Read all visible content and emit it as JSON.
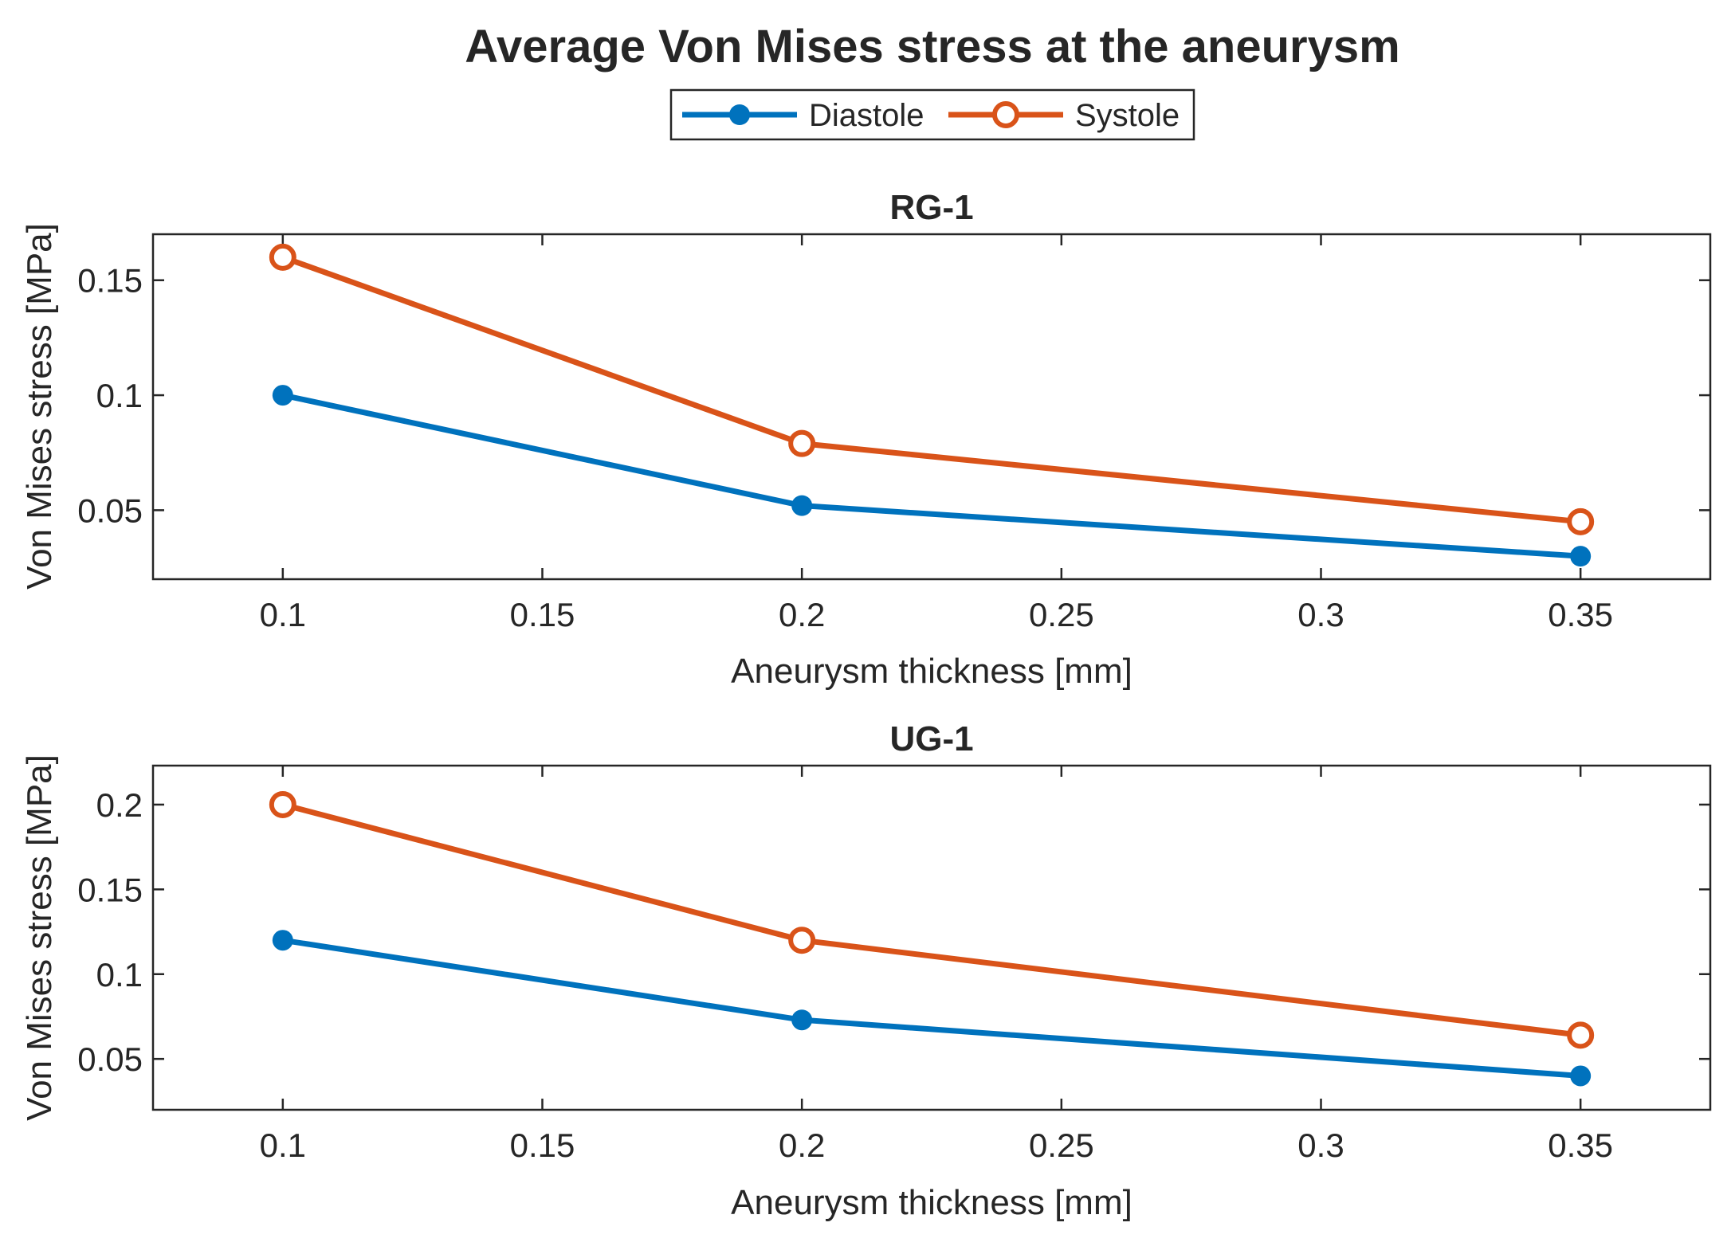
{
  "chart_data": {
    "type": "line",
    "title": "Average Von Mises stress at the aneurysm",
    "legend": {
      "placement": "top-center",
      "entries": [
        {
          "name": "Diastole",
          "color": "#0072BD",
          "marker": "filled-circle"
        },
        {
          "name": "Systole",
          "color": "#D95319",
          "marker": "open-circle"
        }
      ]
    },
    "subplots": [
      {
        "title": "RG-1",
        "xlabel": "Aneurysm thickness [mm]",
        "ylabel": "Von Mises stress [MPa]",
        "xlim": [
          0.075,
          0.375
        ],
        "ylim": [
          0.02,
          0.17
        ],
        "xticks": [
          0.1,
          0.15,
          0.2,
          0.25,
          0.3,
          0.35
        ],
        "xtick_labels": [
          "0.1",
          "0.15",
          "0.2",
          "0.25",
          "0.3",
          "0.35"
        ],
        "yticks": [
          0.05,
          0.1,
          0.15
        ],
        "ytick_labels": [
          "0.05",
          "0.1",
          "0.15"
        ],
        "x": [
          0.1,
          0.2,
          0.35
        ],
        "series": [
          {
            "name": "Diastole",
            "values": [
              0.1,
              0.052,
              0.03
            ]
          },
          {
            "name": "Systole",
            "values": [
              0.16,
              0.079,
              0.045
            ]
          }
        ]
      },
      {
        "title": "UG-1",
        "xlabel": "Aneurysm thickness [mm]",
        "ylabel": "Von Mises stress [MPa]",
        "xlim": [
          0.075,
          0.375
        ],
        "ylim": [
          0.02,
          0.223
        ],
        "xticks": [
          0.1,
          0.15,
          0.2,
          0.25,
          0.3,
          0.35
        ],
        "xtick_labels": [
          "0.1",
          "0.15",
          "0.2",
          "0.25",
          "0.3",
          "0.35"
        ],
        "yticks": [
          0.05,
          0.1,
          0.15,
          0.2
        ],
        "ytick_labels": [
          "0.05",
          "0.1",
          "0.15",
          "0.2"
        ],
        "x": [
          0.1,
          0.2,
          0.35
        ],
        "series": [
          {
            "name": "Diastole",
            "values": [
              0.12,
              0.073,
              0.04
            ]
          },
          {
            "name": "Systole",
            "values": [
              0.2,
              0.12,
              0.064
            ]
          }
        ]
      }
    ]
  }
}
